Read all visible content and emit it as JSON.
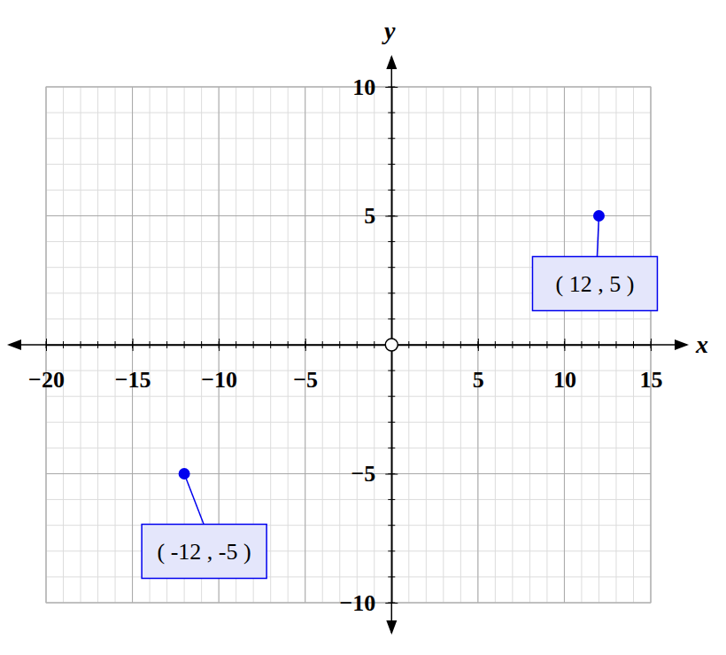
{
  "chart_data": {
    "type": "scatter",
    "x_label": "x",
    "y_label": "y",
    "x": [
      12,
      -12
    ],
    "values": [
      5,
      -5
    ],
    "value_labels": [
      "( 12 , 5 )",
      "( -12 , -5 )"
    ],
    "data_labels": true,
    "color": "#0000ee",
    "marker": "circle",
    "xlim": [
      -20,
      15
    ],
    "ylim": [
      -10,
      10
    ],
    "xticks": [
      {
        "value": -20,
        "label": "−20"
      },
      {
        "value": -15,
        "label": "−15"
      },
      {
        "value": -10,
        "label": "−10"
      },
      {
        "value": -5,
        "label": "−5"
      },
      5,
      10,
      15
    ],
    "yticks": [
      {
        "value": -10,
        "label": "−10"
      },
      {
        "value": -5,
        "label": "−5"
      },
      5,
      10
    ],
    "grid": true
  }
}
